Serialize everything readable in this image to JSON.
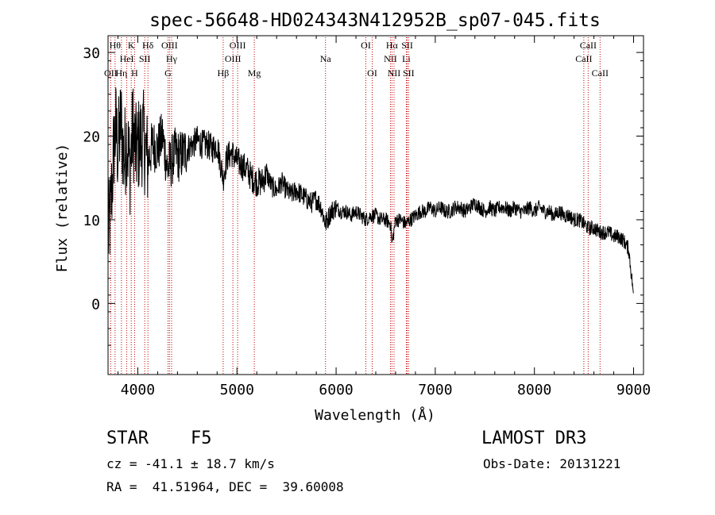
{
  "chart_data": {
    "type": "line",
    "title": "spec-56648-HD024343N412952B_sp07-045.fits",
    "xlabel": "Wavelength (Å)",
    "ylabel": "Flux (relative)",
    "xlim": [
      3700,
      9100
    ],
    "ylim": [
      -8.5,
      32
    ],
    "xticks": [
      4000,
      5000,
      6000,
      7000,
      8000,
      9000
    ],
    "xtick_labels": [
      "4000",
      "5000",
      "6000",
      "7000",
      "8000",
      "9000"
    ],
    "yticks": [
      0,
      10,
      20,
      30
    ],
    "ytick_labels": [
      "0",
      "10",
      "20",
      "30"
    ],
    "series": [
      {
        "name": "spectrum",
        "color": "#000000",
        "x": [
          3700,
          3720,
          3740,
          3760,
          3780,
          3800,
          3830,
          3860,
          3890,
          3920,
          3950,
          3980,
          4010,
          4050,
          4100,
          4150,
          4200,
          4250,
          4300,
          4340,
          4380,
          4420,
          4460,
          4500,
          4550,
          4600,
          4650,
          4700,
          4750,
          4800,
          4861,
          4900,
          4950,
          5000,
          5050,
          5100,
          5150,
          5200,
          5250,
          5300,
          5350,
          5400,
          5450,
          5500,
          5550,
          5600,
          5650,
          5700,
          5750,
          5800,
          5850,
          5893,
          5950,
          6000,
          6050,
          6100,
          6150,
          6200,
          6250,
          6300,
          6350,
          6400,
          6450,
          6500,
          6550,
          6563,
          6600,
          6650,
          6700,
          6750,
          6800,
          6850,
          6900,
          6950,
          7000,
          7050,
          7100,
          7150,
          7200,
          7250,
          7300,
          7350,
          7400,
          7450,
          7500,
          7550,
          7600,
          7650,
          7700,
          7750,
          7800,
          7850,
          7900,
          7950,
          8000,
          8050,
          8100,
          8150,
          8200,
          8250,
          8300,
          8350,
          8400,
          8450,
          8500,
          8542,
          8600,
          8662,
          8700,
          8750,
          8800,
          8850,
          8900,
          8950,
          9000
        ],
        "values": [
          8,
          10,
          14,
          19,
          21,
          18,
          22,
          17,
          20,
          16,
          21,
          18,
          19,
          20,
          17,
          19,
          18.5,
          20,
          16,
          17,
          18,
          17.5,
          18,
          18.5,
          19,
          19.5,
          19,
          19,
          18.5,
          19,
          15,
          17.5,
          18,
          17,
          16.5,
          16,
          15,
          14.5,
          14.5,
          15.5,
          14,
          13.5,
          14.5,
          13.5,
          13,
          13.5,
          13,
          12.5,
          12,
          12.5,
          11.5,
          9.5,
          11,
          11.5,
          11,
          11,
          10.5,
          11,
          10.5,
          10,
          10.5,
          10.5,
          10,
          10,
          9.5,
          7,
          10,
          10,
          9.5,
          10,
          10.5,
          11,
          11,
          11.5,
          11,
          11.5,
          11,
          11,
          11.5,
          11.5,
          11,
          11.5,
          12,
          11.5,
          11,
          11.5,
          11,
          11.5,
          11.5,
          11,
          11.5,
          11,
          11,
          11.5,
          11,
          11.5,
          11,
          11,
          10.5,
          11,
          10.5,
          10.5,
          10,
          10,
          9.5,
          9,
          9,
          8.5,
          8.5,
          8.5,
          8,
          8,
          7.5,
          6.5,
          1
        ]
      }
    ],
    "line_markers": [
      {
        "label": "OII",
        "x": 3727,
        "row": 3
      },
      {
        "label": "Hθ",
        "x": 3771,
        "row": 1
      },
      {
        "label": "Hη",
        "x": 3835,
        "row": 3
      },
      {
        "label": "HeI",
        "x": 3889,
        "row": 2
      },
      {
        "label": "K",
        "x": 3934,
        "row": 1
      },
      {
        "label": "H",
        "x": 3968,
        "row": 3
      },
      {
        "label": "SII",
        "x": 4070,
        "row": 2
      },
      {
        "label": "Hδ",
        "x": 4102,
        "row": 1
      },
      {
        "label": "OIII",
        "x": 4320,
        "row": 1
      },
      {
        "label": "G",
        "x": 4305,
        "row": 3
      },
      {
        "label": "Hγ",
        "x": 4341,
        "row": 2
      },
      {
        "label": "Hβ",
        "x": 4861,
        "row": 3
      },
      {
        "label": "OIII",
        "x": 4959,
        "row": 2
      },
      {
        "label": "OIII",
        "x": 5007,
        "row": 1
      },
      {
        "label": "Mg",
        "x": 5175,
        "row": 3
      },
      {
        "label": "Na",
        "x": 5893,
        "row": 2
      },
      {
        "label": "OI",
        "x": 6300,
        "row": 1
      },
      {
        "label": "OI",
        "x": 6364,
        "row": 3
      },
      {
        "label": "NII",
        "x": 6548,
        "row": 2
      },
      {
        "label": "Hα",
        "x": 6563,
        "row": 1
      },
      {
        "label": "NII",
        "x": 6584,
        "row": 3
      },
      {
        "label": "SII",
        "x": 6717,
        "row": 1
      },
      {
        "label": "Li",
        "x": 6708,
        "row": 2
      },
      {
        "label": "SII",
        "x": 6731,
        "row": 3
      },
      {
        "label": "CaII",
        "x": 8498,
        "row": 2
      },
      {
        "label": "CaII",
        "x": 8542,
        "row": 1
      },
      {
        "label": "CaII",
        "x": 8662,
        "row": 3
      }
    ]
  },
  "info": {
    "object_class": "STAR",
    "subclass": "F5",
    "survey": "LAMOST DR3",
    "cz": "cz = -41.1 ± 18.7 km/s",
    "obs_date": "Obs-Date: 20131221",
    "coords": "RA =  41.51964, DEC =  39.60008"
  }
}
